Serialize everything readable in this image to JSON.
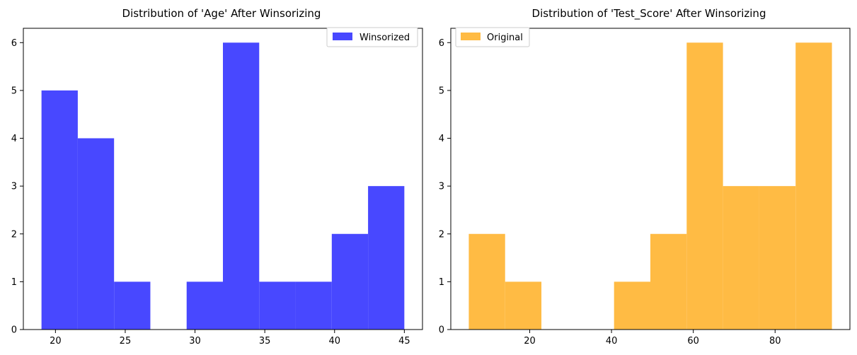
{
  "chart_data": [
    {
      "type": "histogram",
      "title": "Distribution of 'Age' After Winsorizing",
      "xlabel": "",
      "ylabel": "",
      "xlim": [
        17.7,
        46.3
      ],
      "ylim": [
        0,
        6.3
      ],
      "xticks": [
        20,
        25,
        30,
        35,
        40,
        45
      ],
      "yticks": [
        0,
        1,
        2,
        3,
        4,
        5,
        6
      ],
      "legend": {
        "label": "Winsorized",
        "placement": "top-right"
      },
      "color": "#4848ff",
      "bins": [
        {
          "x0": 19.0,
          "x1": 21.6,
          "count": 5
        },
        {
          "x0": 21.6,
          "x1": 24.2,
          "count": 4
        },
        {
          "x0": 24.2,
          "x1": 26.8,
          "count": 1
        },
        {
          "x0": 26.8,
          "x1": 29.4,
          "count": 0
        },
        {
          "x0": 29.4,
          "x1": 32.0,
          "count": 1
        },
        {
          "x0": 32.0,
          "x1": 34.6,
          "count": 6
        },
        {
          "x0": 34.6,
          "x1": 37.2,
          "count": 1
        },
        {
          "x0": 37.2,
          "x1": 39.8,
          "count": 1
        },
        {
          "x0": 39.8,
          "x1": 42.4,
          "count": 2
        },
        {
          "x0": 42.4,
          "x1": 45.0,
          "count": 3
        }
      ]
    },
    {
      "type": "histogram",
      "title": "Distribution of 'Test_Score' After Winsorizing",
      "xlabel": "",
      "ylabel": "",
      "xlim": [
        0.7,
        98.3
      ],
      "ylim": [
        0,
        6.3
      ],
      "xticks": [
        20,
        40,
        60,
        80
      ],
      "yticks": [
        0,
        1,
        2,
        3,
        4,
        5,
        6
      ],
      "legend": {
        "label": "Original",
        "placement": "top-left"
      },
      "color": "#ffbb44",
      "bins": [
        {
          "x0": 5.1,
          "x1": 13.98,
          "count": 2
        },
        {
          "x0": 13.98,
          "x1": 22.86,
          "count": 1
        },
        {
          "x0": 22.86,
          "x1": 31.74,
          "count": 0
        },
        {
          "x0": 31.74,
          "x1": 40.62,
          "count": 0
        },
        {
          "x0": 40.62,
          "x1": 49.5,
          "count": 1
        },
        {
          "x0": 49.5,
          "x1": 58.38,
          "count": 2
        },
        {
          "x0": 58.38,
          "x1": 67.26,
          "count": 6
        },
        {
          "x0": 67.26,
          "x1": 76.14,
          "count": 3
        },
        {
          "x0": 76.14,
          "x1": 85.02,
          "count": 3
        },
        {
          "x0": 85.02,
          "x1": 93.9,
          "count": 6
        }
      ]
    }
  ]
}
